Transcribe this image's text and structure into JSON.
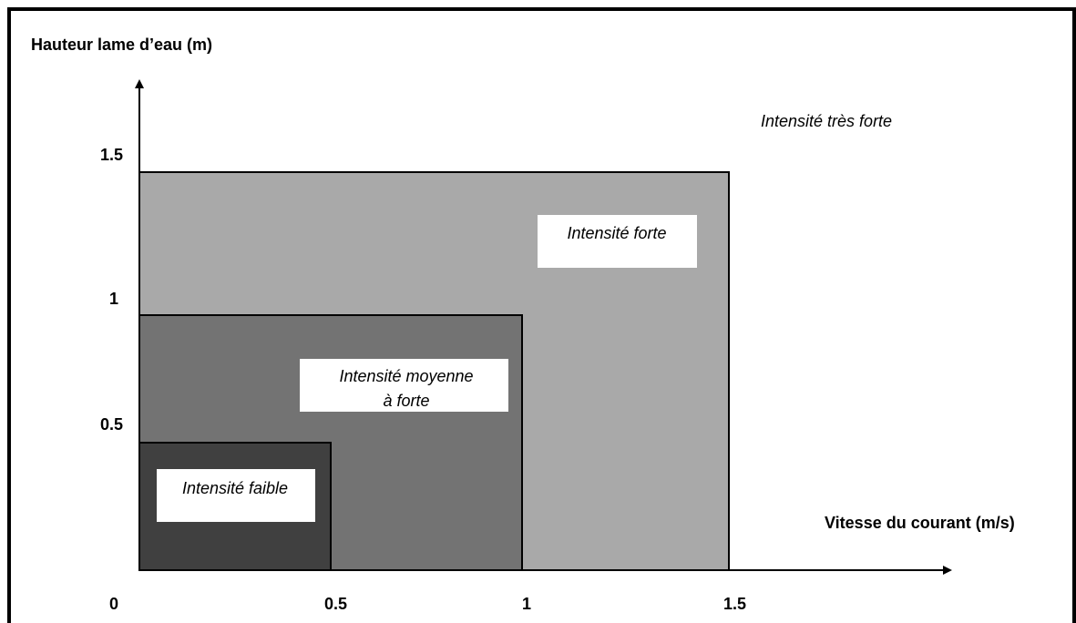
{
  "y_axis_title": "Hauteur lame d’eau (m)",
  "x_axis_title": "Vitesse du courant (m/s)",
  "origin_label": "0",
  "y_ticks": [
    "0.5",
    "1",
    "1.5"
  ],
  "x_ticks": [
    "0.5",
    "1",
    "1.5"
  ],
  "zones": {
    "very_strong": {
      "label": "Intensité très forte"
    },
    "strong": {
      "label": "Intensité forte",
      "color": "#a9a9a9",
      "max_velocity": 1.5,
      "max_depth": 1.5
    },
    "medium": {
      "line1": "Intensité moyenne",
      "line2": "à forte",
      "color": "#737373",
      "max_velocity": 1,
      "max_depth": 1
    },
    "weak": {
      "label": "Intensité faible",
      "color": "#404040",
      "max_velocity": 0.5,
      "max_depth": 0.5
    }
  }
}
